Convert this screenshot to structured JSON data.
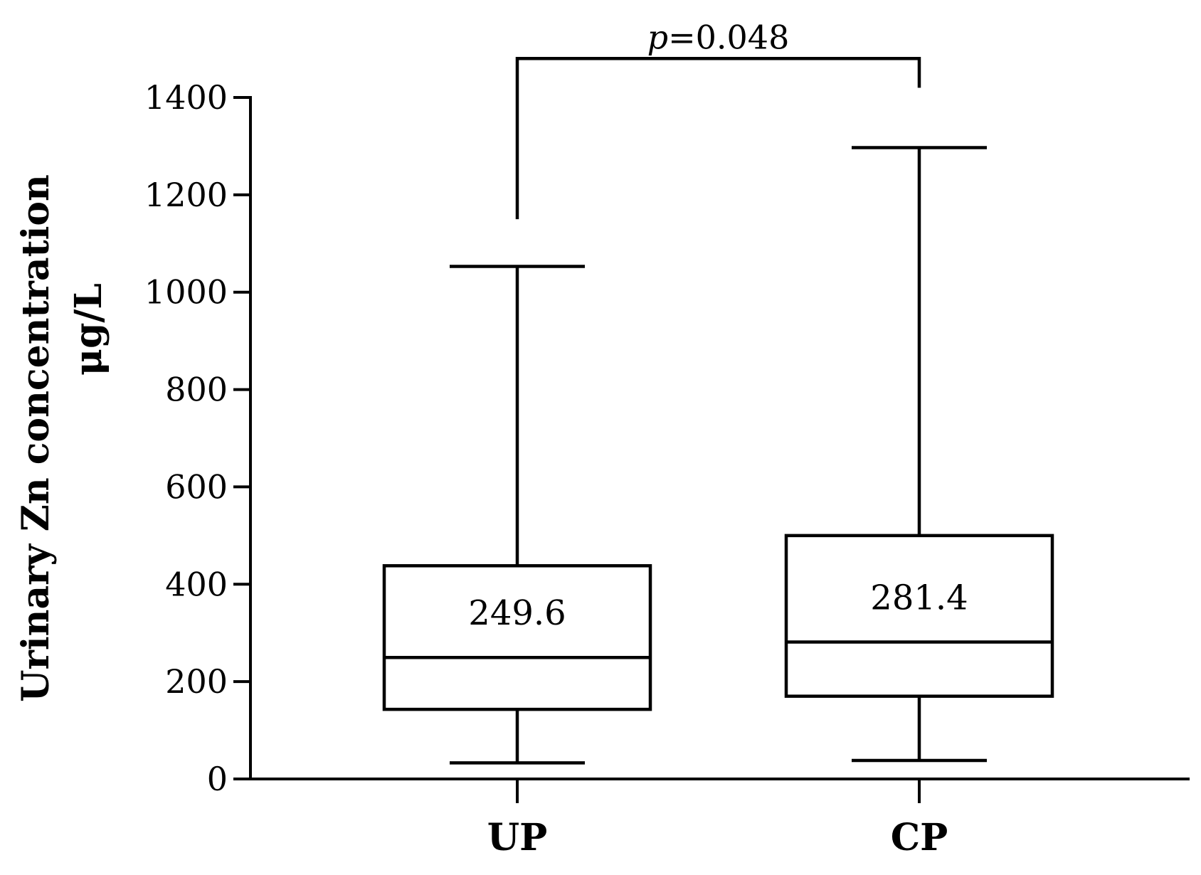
{
  "chart_data": {
    "type": "box",
    "ylabel": "Urinary Zn concentration",
    "yunit": "μg/L",
    "ylim": [
      0,
      1400
    ],
    "yticks": [
      0,
      200,
      400,
      600,
      800,
      1000,
      1200,
      1400
    ],
    "categories": [
      "UP",
      "CP"
    ],
    "boxes": [
      {
        "category": "UP",
        "min": 33,
        "q1": 143,
        "median": 249.6,
        "q3": 438,
        "max": 1053,
        "median_label": "249.6"
      },
      {
        "category": "CP",
        "min": 38,
        "q1": 170,
        "median": 281.4,
        "q3": 500,
        "max": 1297,
        "median_label": "281.4"
      }
    ],
    "significance": {
      "p_symbol": "p",
      "p_text": "=0.048",
      "between": [
        "UP",
        "CP"
      ],
      "bracket_top": 1480,
      "left_end": 1150,
      "right_end": 1420
    }
  }
}
